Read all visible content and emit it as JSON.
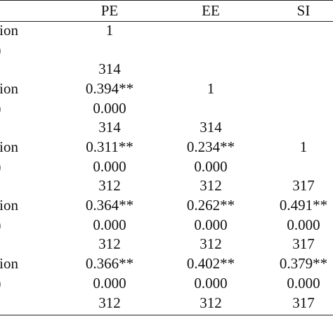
{
  "table": {
    "headers": [
      "PE",
      "EE",
      "SI"
    ],
    "row_labels": [
      {
        "line1": "ation",
        "line2": "d)"
      },
      {
        "line1": "ation",
        "line2": "d)"
      },
      {
        "line1": "ation",
        "line2": "d)"
      },
      {
        "line1": "ation",
        "line2": "d)"
      },
      {
        "line1": "ation",
        "line2": "d)"
      }
    ],
    "blocks": [
      {
        "PE": {
          "r": "1",
          "sig": "",
          "n": "314"
        },
        "EE": {
          "r": "",
          "sig": "",
          "n": ""
        },
        "SI": {
          "r": "",
          "sig": "",
          "n": ""
        }
      },
      {
        "PE": {
          "r": "0.394**",
          "sig": "0.000",
          "n": "314"
        },
        "EE": {
          "r": "1",
          "sig": "",
          "n": "314"
        },
        "SI": {
          "r": "",
          "sig": "",
          "n": ""
        }
      },
      {
        "PE": {
          "r": "0.311**",
          "sig": "0.000",
          "n": "312"
        },
        "EE": {
          "r": "0.234**",
          "sig": "0.000",
          "n": "312"
        },
        "SI": {
          "r": "1",
          "sig": "",
          "n": "317"
        }
      },
      {
        "PE": {
          "r": "0.364**",
          "sig": "0.000",
          "n": "312"
        },
        "EE": {
          "r": "0.262**",
          "sig": "0.000",
          "n": "312"
        },
        "SI": {
          "r": "0.491**",
          "sig": "0.000",
          "n": "317"
        }
      },
      {
        "PE": {
          "r": "0.366**",
          "sig": "0.000",
          "n": "312"
        },
        "EE": {
          "r": "0.402**",
          "sig": "0.000",
          "n": "312"
        },
        "SI": {
          "r": "0.379**",
          "sig": "0.000",
          "n": "317"
        }
      }
    ]
  }
}
